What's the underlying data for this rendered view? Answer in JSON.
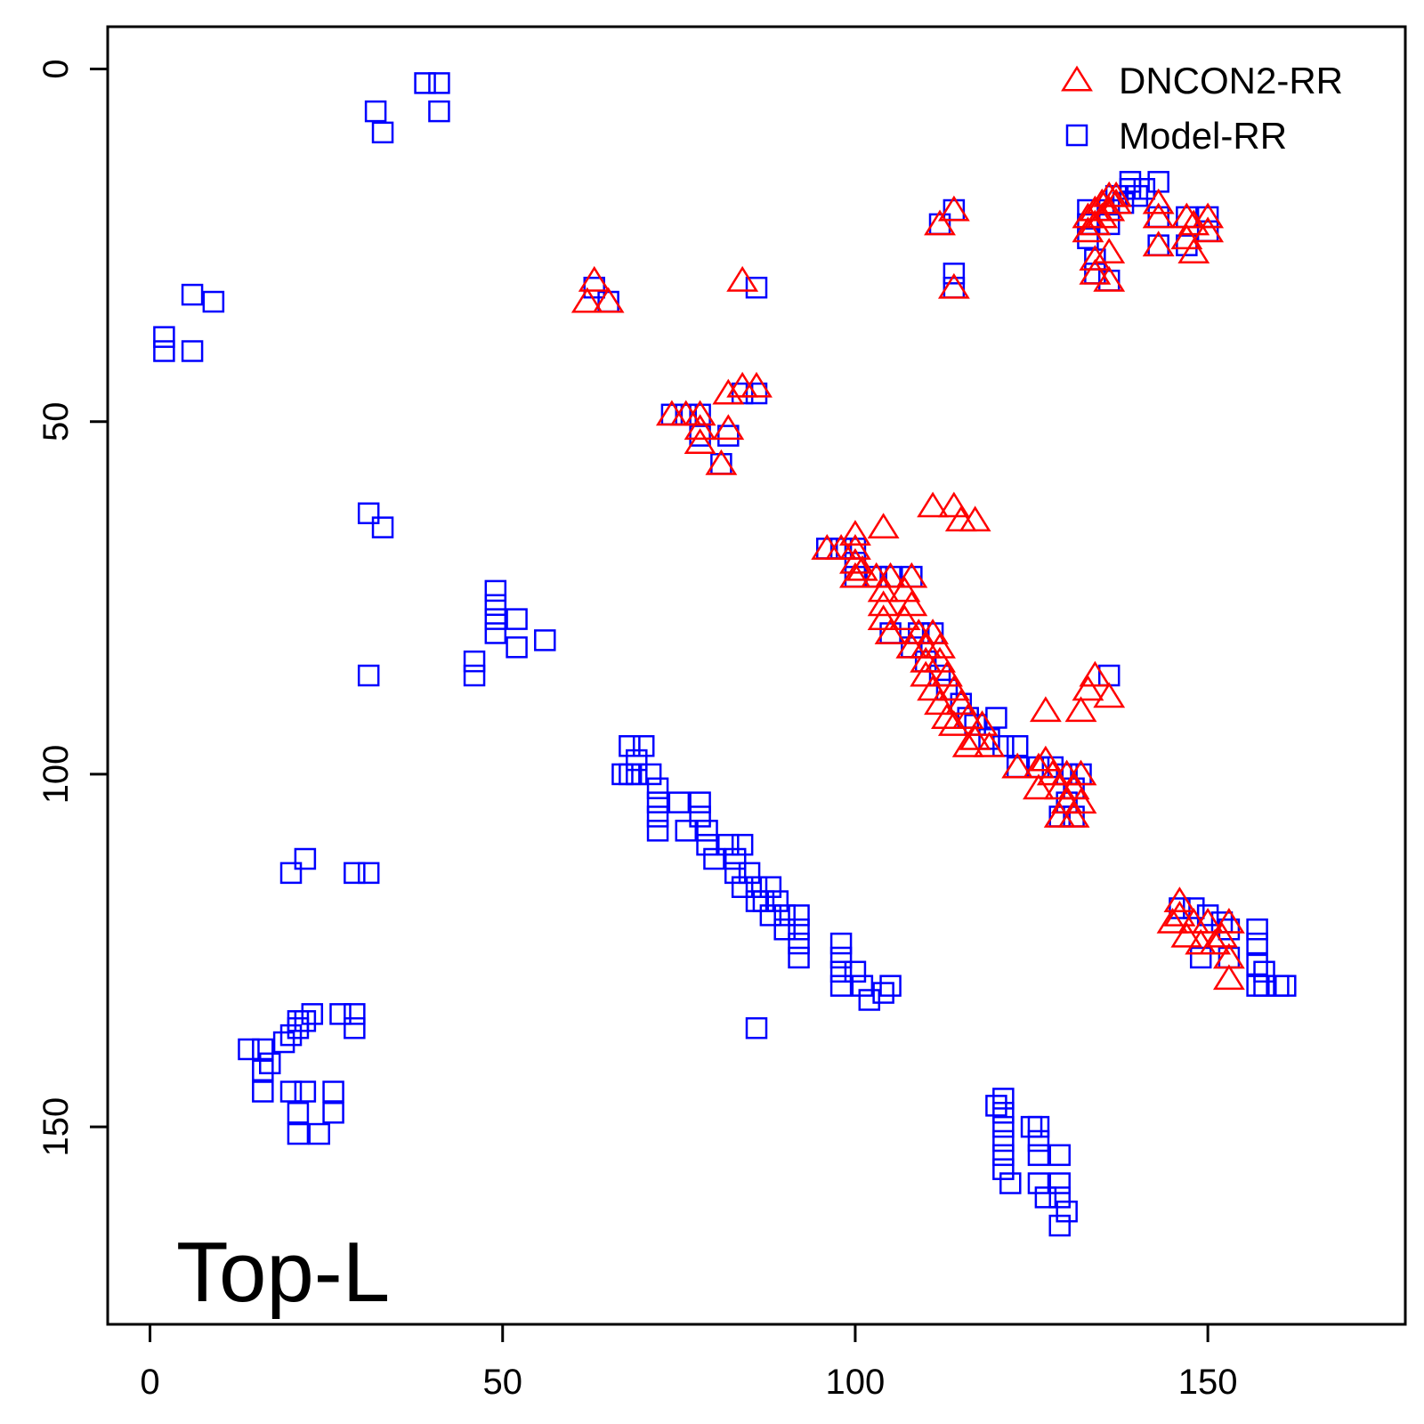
{
  "chart_data": {
    "type": "scatter",
    "title": "",
    "xlabel": "",
    "ylabel": "",
    "xlim": [
      -6,
      178
    ],
    "ylim": [
      -6,
      178
    ],
    "y_axis_inverted": true,
    "x_ticks": [
      0,
      50,
      100,
      150
    ],
    "y_ticks": [
      0,
      50,
      100,
      150
    ],
    "grid": false,
    "legend_position": "top-right",
    "annotation": "Top-L",
    "series": [
      {
        "name": "DNCON2-RR",
        "marker": "triangle",
        "color": "#ff0000",
        "points": [
          [
            63,
            30
          ],
          [
            62,
            33
          ],
          [
            65,
            33
          ],
          [
            84,
            30
          ],
          [
            114,
            31
          ],
          [
            112,
            22
          ],
          [
            114,
            20
          ],
          [
            133,
            21
          ],
          [
            133,
            23
          ],
          [
            134,
            20
          ],
          [
            134,
            22
          ],
          [
            135,
            19
          ],
          [
            135,
            21
          ],
          [
            136,
            18
          ],
          [
            136,
            20
          ],
          [
            137,
            18
          ],
          [
            137,
            19
          ],
          [
            134,
            27
          ],
          [
            136,
            26
          ],
          [
            134,
            29
          ],
          [
            136,
            30
          ],
          [
            143,
            19
          ],
          [
            143,
            21
          ],
          [
            147,
            21
          ],
          [
            148,
            22
          ],
          [
            150,
            21
          ],
          [
            150,
            23
          ],
          [
            143,
            25
          ],
          [
            147,
            24
          ],
          [
            148,
            26
          ],
          [
            82,
            46
          ],
          [
            84,
            45
          ],
          [
            86,
            45
          ],
          [
            74,
            49
          ],
          [
            76,
            49
          ],
          [
            78,
            49
          ],
          [
            78,
            51
          ],
          [
            82,
            51
          ],
          [
            78,
            53
          ],
          [
            81,
            56
          ],
          [
            111,
            62
          ],
          [
            114,
            62
          ],
          [
            115,
            64
          ],
          [
            117,
            64
          ],
          [
            104,
            65
          ],
          [
            96,
            68
          ],
          [
            98,
            68
          ],
          [
            100,
            66
          ],
          [
            100,
            68
          ],
          [
            100,
            70
          ],
          [
            101,
            71
          ],
          [
            100,
            72
          ],
          [
            103,
            72
          ],
          [
            105,
            72
          ],
          [
            108,
            72
          ],
          [
            104,
            74
          ],
          [
            107,
            74
          ],
          [
            104,
            76
          ],
          [
            108,
            76
          ],
          [
            104,
            78
          ],
          [
            107,
            78
          ],
          [
            105,
            80
          ],
          [
            109,
            80
          ],
          [
            111,
            80
          ],
          [
            108,
            82
          ],
          [
            110,
            82
          ],
          [
            112,
            82
          ],
          [
            110,
            84
          ],
          [
            112,
            84
          ],
          [
            110,
            86
          ],
          [
            113,
            86
          ],
          [
            111,
            88
          ],
          [
            114,
            88
          ],
          [
            112,
            90
          ],
          [
            115,
            90
          ],
          [
            113,
            92
          ],
          [
            116,
            92
          ],
          [
            118,
            93
          ],
          [
            117,
            95
          ],
          [
            114,
            93
          ],
          [
            119,
            96
          ],
          [
            116,
            96
          ],
          [
            133,
            88
          ],
          [
            134,
            86
          ],
          [
            136,
            89
          ],
          [
            127,
            91
          ],
          [
            132,
            91
          ],
          [
            123,
            99
          ],
          [
            126,
            99
          ],
          [
            127,
            98
          ],
          [
            128,
            100
          ],
          [
            130,
            100
          ],
          [
            132,
            100
          ],
          [
            126,
            102
          ],
          [
            129,
            102
          ],
          [
            131,
            102
          ],
          [
            130,
            104
          ],
          [
            132,
            104
          ],
          [
            131,
            106
          ],
          [
            129,
            106
          ],
          [
            146,
            118
          ],
          [
            146,
            120
          ],
          [
            145,
            121
          ],
          [
            148,
            121
          ],
          [
            150,
            121
          ],
          [
            153,
            121
          ],
          [
            149,
            124
          ],
          [
            151,
            124
          ],
          [
            152,
            123
          ],
          [
            147,
            123
          ],
          [
            153,
            126
          ],
          [
            153,
            129
          ]
        ]
      },
      {
        "name": "Model-RR",
        "marker": "square",
        "color": "#0000ff",
        "points": [
          [
            39,
            2
          ],
          [
            41,
            2
          ],
          [
            41,
            6
          ],
          [
            32,
            6
          ],
          [
            33,
            9
          ],
          [
            6,
            32
          ],
          [
            9,
            33
          ],
          [
            2,
            38
          ],
          [
            2,
            40
          ],
          [
            6,
            40
          ],
          [
            112,
            22
          ],
          [
            114,
            20
          ],
          [
            114,
            29
          ],
          [
            114,
            31
          ],
          [
            133,
            20
          ],
          [
            133,
            22
          ],
          [
            133,
            24
          ],
          [
            134,
            27
          ],
          [
            134,
            29
          ],
          [
            136,
            30
          ],
          [
            136,
            20
          ],
          [
            136,
            22
          ],
          [
            137,
            18
          ],
          [
            138,
            19
          ],
          [
            139,
            17
          ],
          [
            139,
            16
          ],
          [
            140,
            18
          ],
          [
            141,
            17
          ],
          [
            143,
            16
          ],
          [
            143,
            21
          ],
          [
            143,
            25
          ],
          [
            147,
            21
          ],
          [
            147,
            25
          ],
          [
            150,
            21
          ],
          [
            150,
            23
          ],
          [
            63,
            31
          ],
          [
            65,
            33
          ],
          [
            86,
            31
          ],
          [
            84,
            46
          ],
          [
            86,
            46
          ],
          [
            74,
            49
          ],
          [
            76,
            49
          ],
          [
            78,
            49
          ],
          [
            78,
            52
          ],
          [
            82,
            52
          ],
          [
            81,
            56
          ],
          [
            31,
            63
          ],
          [
            33,
            65
          ],
          [
            49,
            74
          ],
          [
            49,
            76
          ],
          [
            49,
            78
          ],
          [
            49,
            80
          ],
          [
            52,
            78
          ],
          [
            52,
            82
          ],
          [
            56,
            81
          ],
          [
            46,
            84
          ],
          [
            46,
            86
          ],
          [
            31,
            86
          ],
          [
            96,
            68
          ],
          [
            98,
            68
          ],
          [
            100,
            68
          ],
          [
            100,
            70
          ],
          [
            100,
            72
          ],
          [
            103,
            72
          ],
          [
            105,
            72
          ],
          [
            108,
            72
          ],
          [
            105,
            80
          ],
          [
            109,
            80
          ],
          [
            111,
            80
          ],
          [
            108,
            82
          ],
          [
            110,
            84
          ],
          [
            112,
            86
          ],
          [
            113,
            88
          ],
          [
            115,
            90
          ],
          [
            116,
            92
          ],
          [
            117,
            93
          ],
          [
            119,
            95
          ],
          [
            121,
            96
          ],
          [
            123,
            96
          ],
          [
            120,
            92
          ],
          [
            136,
            86
          ],
          [
            123,
            99
          ],
          [
            126,
            99
          ],
          [
            128,
            99
          ],
          [
            130,
            100
          ],
          [
            132,
            100
          ],
          [
            131,
            102
          ],
          [
            130,
            104
          ],
          [
            131,
            106
          ],
          [
            129,
            106
          ],
          [
            67,
            100
          ],
          [
            68,
            100
          ],
          [
            69,
            98
          ],
          [
            70,
            96
          ],
          [
            68,
            96
          ],
          [
            69,
            100
          ],
          [
            71,
            100
          ],
          [
            72,
            102
          ],
          [
            72,
            104
          ],
          [
            72,
            106
          ],
          [
            72,
            108
          ],
          [
            75,
            104
          ],
          [
            76,
            108
          ],
          [
            78,
            104
          ],
          [
            78,
            106
          ],
          [
            79,
            108
          ],
          [
            79,
            110
          ],
          [
            80,
            112
          ],
          [
            82,
            110
          ],
          [
            84,
            110
          ],
          [
            83,
            112
          ],
          [
            83,
            114
          ],
          [
            84,
            116
          ],
          [
            85,
            114
          ],
          [
            86,
            116
          ],
          [
            86,
            118
          ],
          [
            87,
            118
          ],
          [
            88,
            116
          ],
          [
            88,
            120
          ],
          [
            89,
            118
          ],
          [
            90,
            120
          ],
          [
            90,
            122
          ],
          [
            92,
            120
          ],
          [
            92,
            122
          ],
          [
            92,
            124
          ],
          [
            92,
            126
          ],
          [
            98,
            124
          ],
          [
            98,
            126
          ],
          [
            98,
            128
          ],
          [
            98,
            130
          ],
          [
            100,
            128
          ],
          [
            101,
            130
          ],
          [
            102,
            132
          ],
          [
            104,
            131
          ],
          [
            105,
            130
          ],
          [
            86,
            136
          ],
          [
            20,
            114
          ],
          [
            22,
            112
          ],
          [
            29,
            114
          ],
          [
            31,
            114
          ],
          [
            23,
            134
          ],
          [
            22,
            135
          ],
          [
            21,
            135
          ],
          [
            21,
            136
          ],
          [
            20,
            137
          ],
          [
            19,
            138
          ],
          [
            16,
            139
          ],
          [
            14,
            139
          ],
          [
            17,
            141
          ],
          [
            16,
            142
          ],
          [
            29,
            134
          ],
          [
            29,
            136
          ],
          [
            27,
            134
          ],
          [
            16,
            145
          ],
          [
            20,
            145
          ],
          [
            22,
            145
          ],
          [
            26,
            145
          ],
          [
            21,
            148
          ],
          [
            21,
            151
          ],
          [
            24,
            151
          ],
          [
            26,
            148
          ],
          [
            120,
            147
          ],
          [
            121,
            146
          ],
          [
            121,
            148
          ],
          [
            121,
            150
          ],
          [
            121,
            152
          ],
          [
            121,
            154
          ],
          [
            121,
            156
          ],
          [
            125,
            150
          ],
          [
            126,
            150
          ],
          [
            126,
            152
          ],
          [
            126,
            154
          ],
          [
            129,
            154
          ],
          [
            122,
            158
          ],
          [
            126,
            158
          ],
          [
            127,
            160
          ],
          [
            129,
            158
          ],
          [
            129,
            160
          ],
          [
            130,
            162
          ],
          [
            129,
            164
          ],
          [
            146,
            119
          ],
          [
            148,
            119
          ],
          [
            150,
            120
          ],
          [
            152,
            121
          ],
          [
            153,
            122
          ],
          [
            157,
            122
          ],
          [
            157,
            124
          ],
          [
            157,
            127
          ],
          [
            157,
            130
          ],
          [
            158,
            128
          ],
          [
            158,
            130
          ],
          [
            160,
            130
          ],
          [
            161,
            130
          ],
          [
            149,
            126
          ],
          [
            153,
            126
          ]
        ]
      }
    ]
  }
}
